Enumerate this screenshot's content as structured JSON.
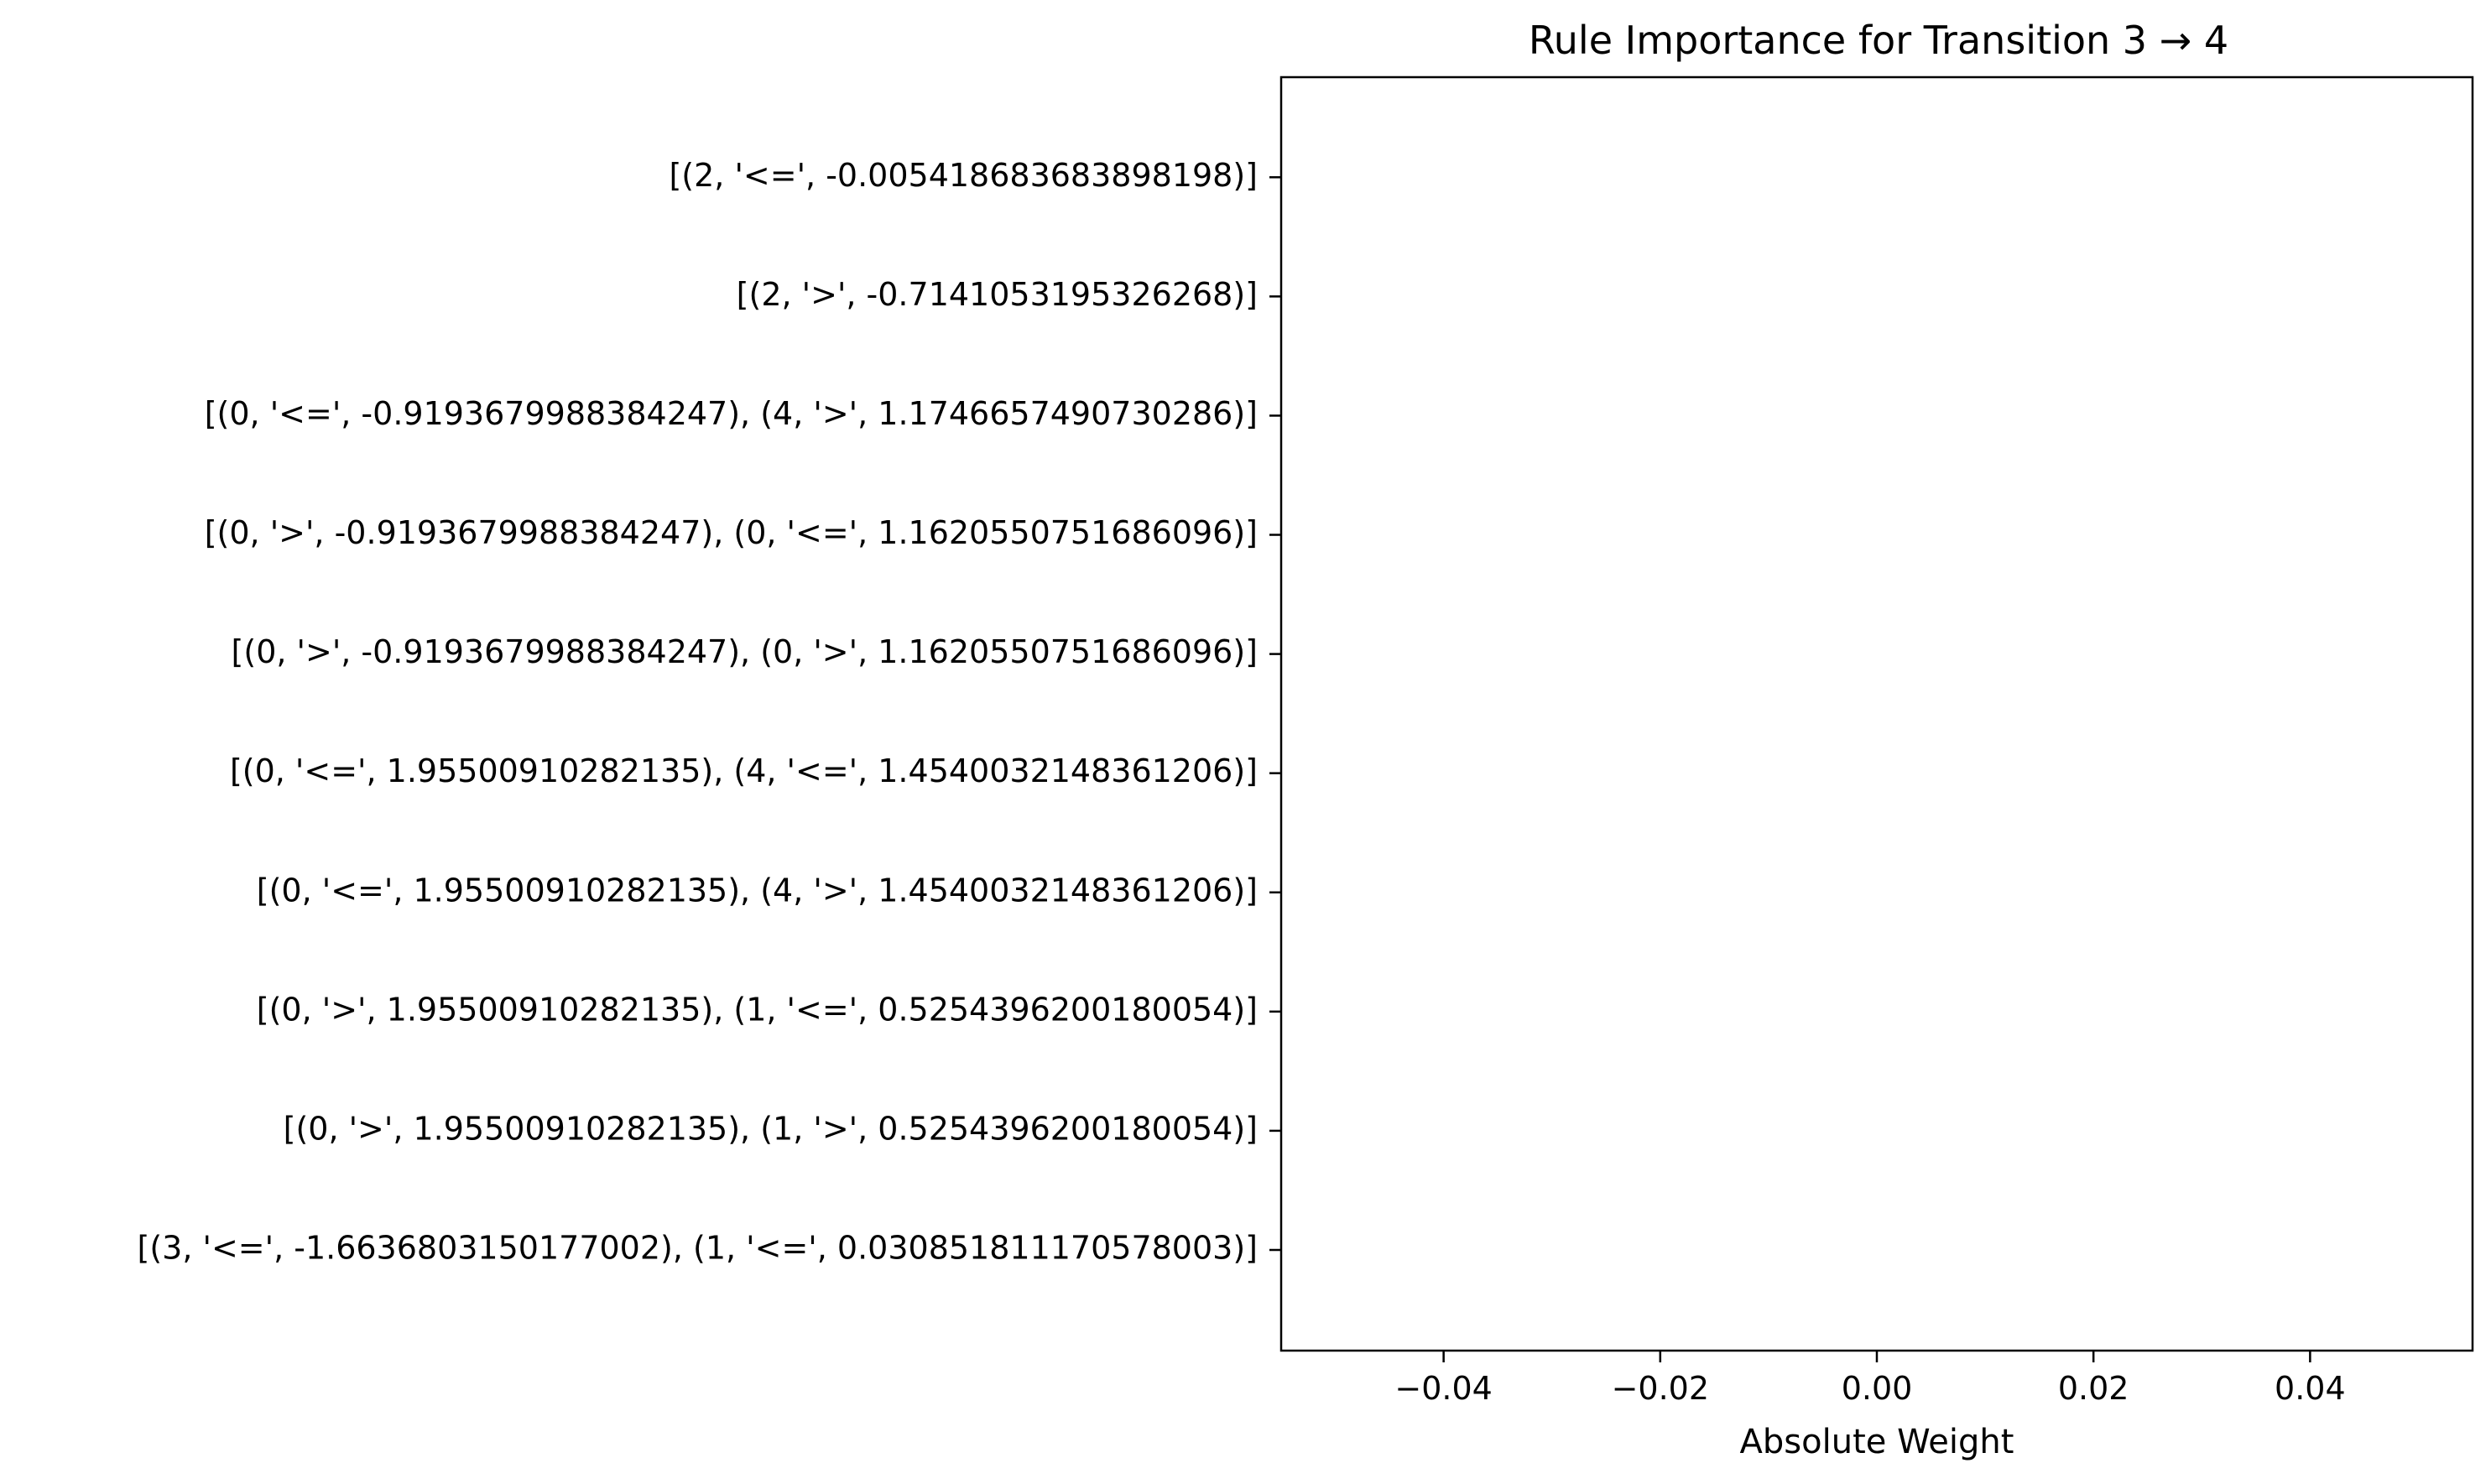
{
  "chart_data": {
    "type": "bar",
    "orientation": "horizontal",
    "title": "Rule Importance for Transition 3 → 4",
    "xlabel": "Absolute Weight",
    "ylabel": "",
    "xlim": [
      -0.055,
      0.055
    ],
    "xticks": [
      -0.04,
      -0.02,
      0.0,
      0.02,
      0.04
    ],
    "xtick_labels": [
      "−0.04",
      "−0.02",
      "0.00",
      "0.02",
      "0.04"
    ],
    "grid": false,
    "categories": [
      "[(2, '<=', -0.005418683683898198)]",
      "[(2, '>', -0.7141053195326268)]",
      "[(0, '<=', -0.9193679988384247), (4, '>', 1.1746657490730286)]",
      "[(0, '>', -0.9193679988384247), (0, '<=', 1.1620550751686096)]",
      "[(0, '>', -0.9193679988384247), (0, '>', 1.1620550751686096)]",
      "[(0, '<=', 1.95500910282135), (4, '<=', 1.4540032148361206)]",
      "[(0, '<=', 1.95500910282135), (4, '>', 1.4540032148361206)]",
      "[(0, '>', 1.95500910282135), (1, '<=', 0.5254396200180054)]",
      "[(0, '>', 1.95500910282135), (1, '>', 0.5254396200180054)]",
      "[(3, '<=', -1.6636803150177002), (1, '<=', 0.030851811170578003)]"
    ],
    "values": [
      0,
      0,
      0,
      0,
      0,
      0,
      0,
      0,
      0,
      0
    ]
  }
}
